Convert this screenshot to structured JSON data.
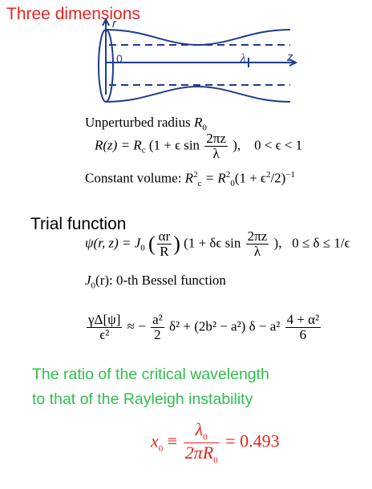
{
  "title": "Three dimensions",
  "diagram": {
    "axis_r": "r",
    "axis_z": "z",
    "origin": "0",
    "lambda": "λ"
  },
  "unperturbed": {
    "label": "Unperturbed radius",
    "symbol": "R",
    "sub": "0"
  },
  "radius_eq": {
    "lhs": "R(z) = R",
    "lhs_sub": "c",
    "open": "(1 + ϵ sin",
    "num": "2πz",
    "den": "λ",
    "close": "),",
    "condition": "0 < ϵ < 1"
  },
  "volume_eq": {
    "label": "Constant volume:",
    "text": "R",
    "text_sub": "c",
    "text_sup": "2",
    "rest": "= R",
    "rest_sub": "0",
    "rest_sup": "2",
    "tail": "(1 + ϵ",
    "tail_sup": "2",
    "tail2": "/2)",
    "tail2_sup": "−1"
  },
  "trial": {
    "heading": "Trial function",
    "lhs": "ψ(r, z) = J",
    "lhs_sub": "0",
    "f1_num": "αr",
    "f1_den": "R",
    "mid": "(1 + δϵ sin",
    "f2_num": "2πz",
    "f2_den": "λ",
    "close": "),",
    "condition": "0 ≤ δ ≤ 1/ϵ",
    "bessel": "J",
    "bessel_sub": "0",
    "bessel_text": "(r): 0-th Bessel function"
  },
  "energy": {
    "lhs_num": "γΔ[ψ]",
    "lhs_den": "ϵ²",
    "approx": "≈ −",
    "a_num": "a²",
    "a_den": "2",
    "t1": "δ² + (2b² − a²) δ − a²",
    "b_num": "4 + α²",
    "b_den": "6"
  },
  "ratio": {
    "line1": "The ratio of the critical wavelength",
    "line2": "to that of the Rayleigh instability"
  },
  "result": {
    "lhs": "x",
    "lhs_sub": "0",
    "equiv": "≡",
    "num": "λ",
    "num_sub": "0",
    "den": "2πR",
    "den_sub": "0",
    "value": "= 0.493"
  },
  "colors": {
    "title": "#e8231f",
    "green": "#2fbf4a",
    "red": "#e2231a",
    "diagram": "#1f3b8c"
  }
}
